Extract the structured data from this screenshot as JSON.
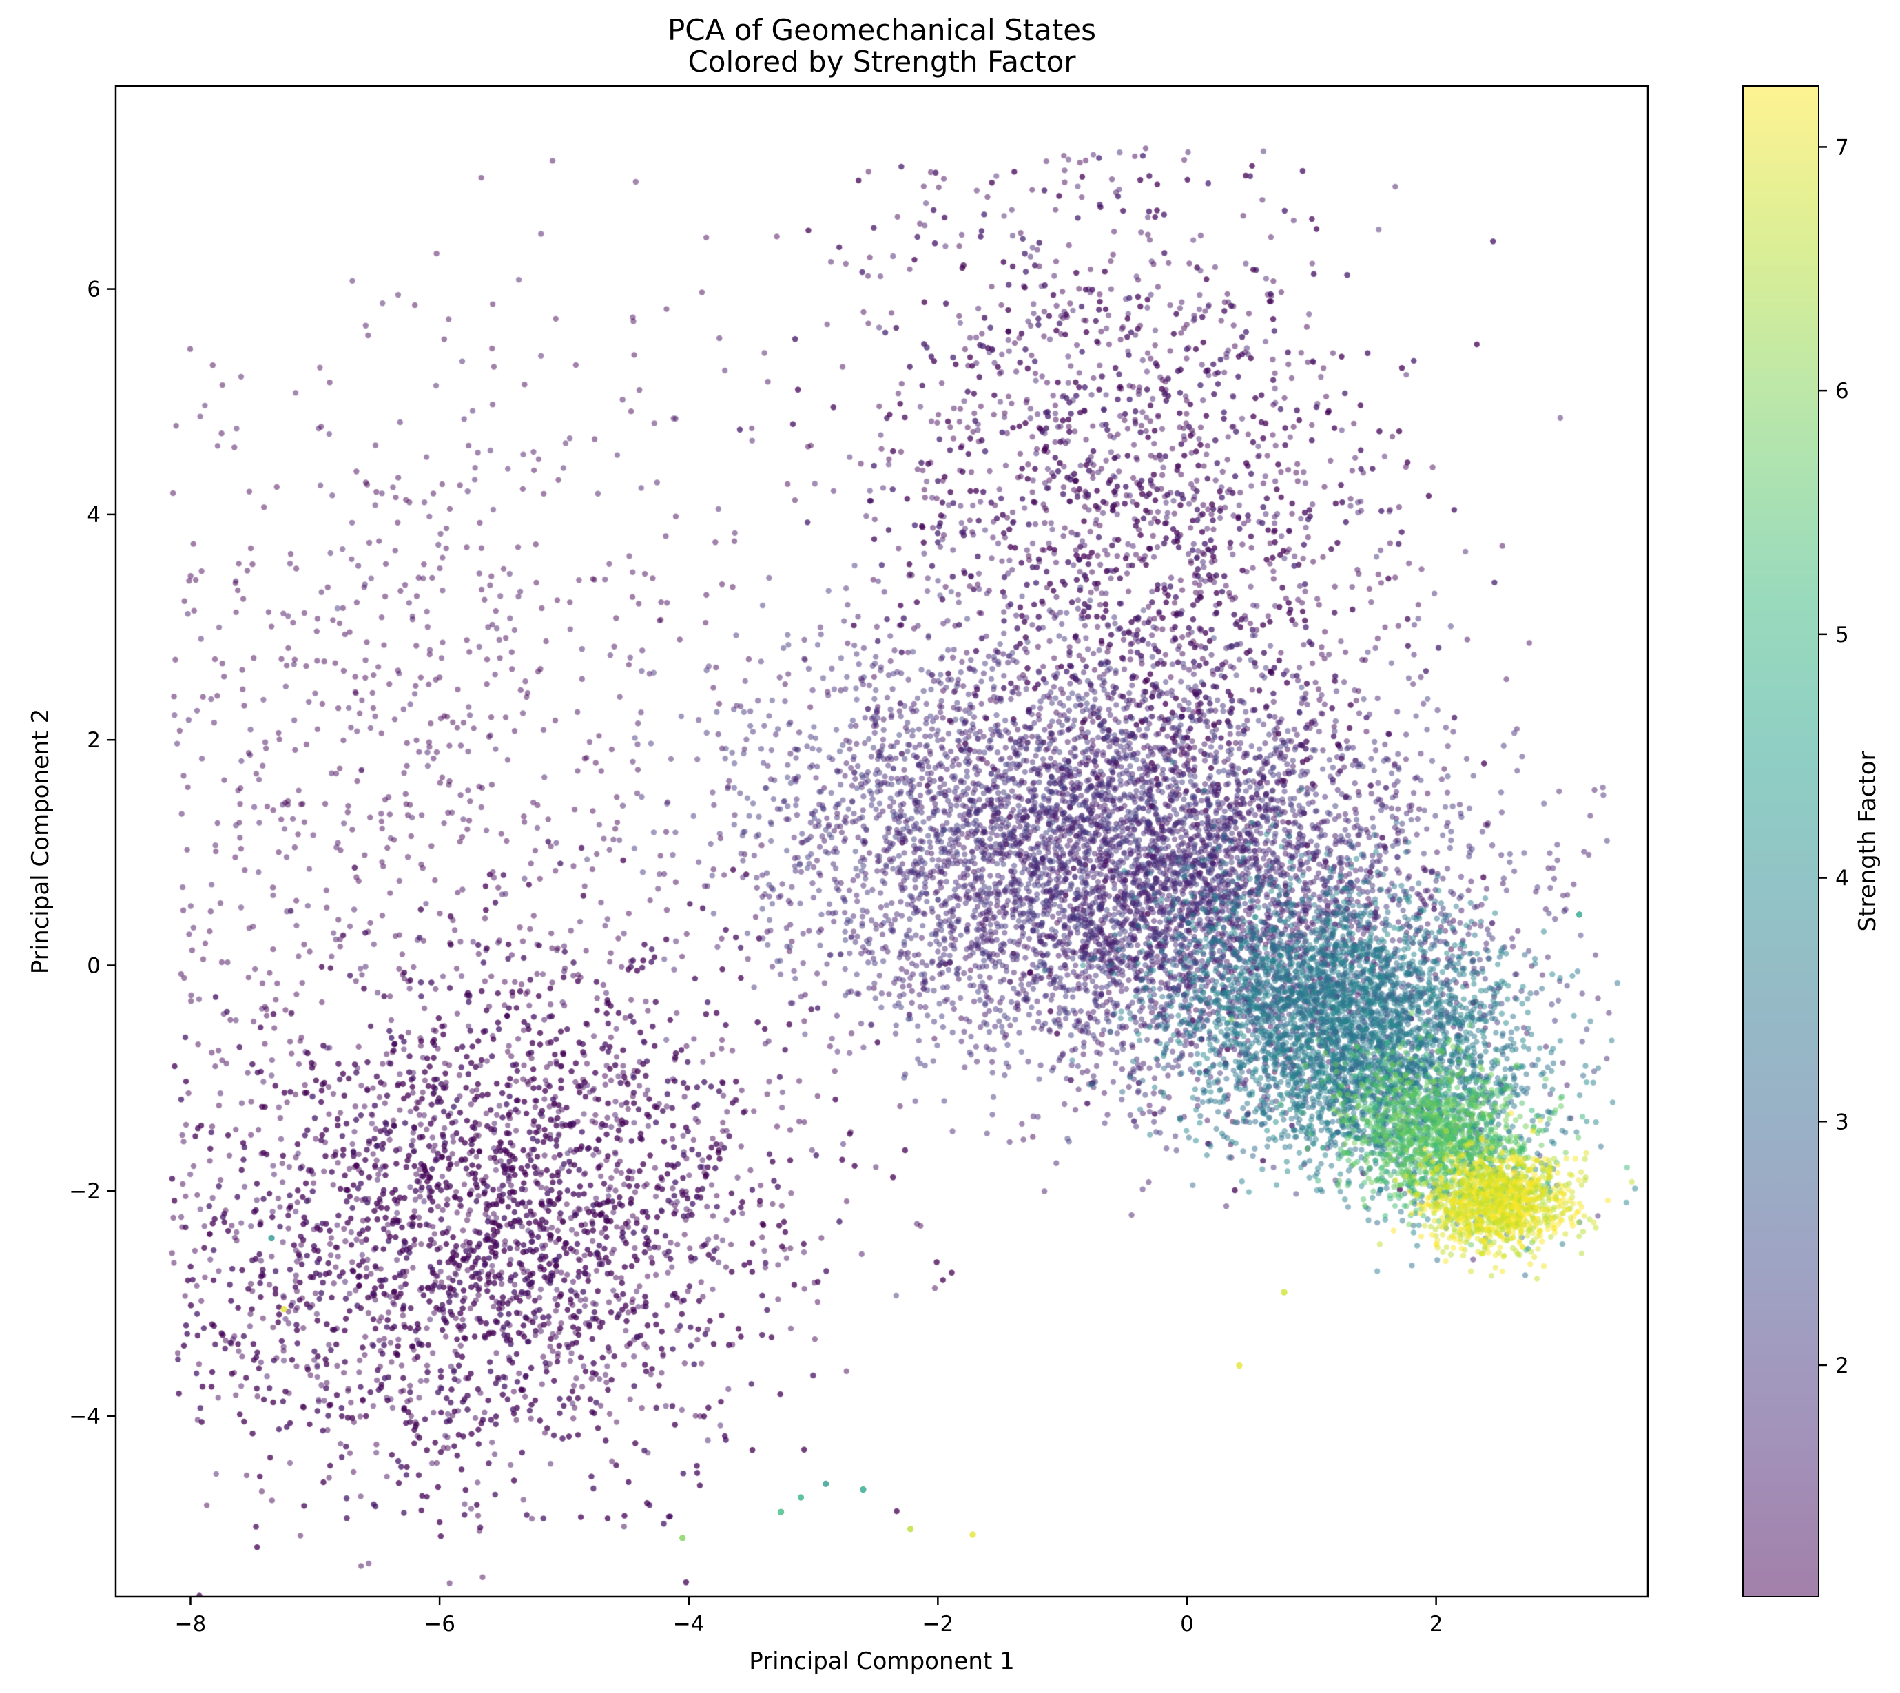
{
  "chart_data": {
    "type": "scatter",
    "title": [
      "PCA of Geomechanical States",
      "Colored by Strength Factor"
    ],
    "xlabel": "Principal Component 1",
    "ylabel": "Principal Component 2",
    "xlim": [
      -8.6,
      3.7
    ],
    "ylim": [
      -5.6,
      7.8
    ],
    "x_ticks": [
      -8,
      -6,
      -4,
      -2,
      0,
      2
    ],
    "x_tick_labels": [
      "−8",
      "−6",
      "−4",
      "−2",
      "0",
      "2"
    ],
    "y_ticks": [
      -4,
      -2,
      0,
      2,
      4,
      6
    ],
    "y_tick_labels": [
      "−4",
      "−2",
      "0",
      "2",
      "4",
      "6"
    ],
    "grid": false,
    "colormap": "viridis",
    "point_alpha": 0.5,
    "colorbar": {
      "label": "Strength Factor",
      "range": [
        1.05,
        7.25
      ],
      "ticks": [
        2,
        3,
        4,
        5,
        6,
        7
      ],
      "tick_labels": [
        "2",
        "3",
        "4",
        "5",
        "6",
        "7"
      ]
    },
    "point_clusters": [
      {
        "name": "lower-left band",
        "center": [
          -5.6,
          -2.3
        ],
        "spread": [
          1.05,
          1.25
        ],
        "rotation_deg": -52,
        "count": 4200,
        "color_value": 1.1
      },
      {
        "name": "left sparse cloud",
        "center": [
          -6.5,
          1.5
        ],
        "spread": [
          1.3,
          2.3
        ],
        "rotation_deg": -20,
        "count": 900,
        "color_value": 1.1
      },
      {
        "name": "upper central mass",
        "center": [
          -0.4,
          3.6
        ],
        "spread": [
          1.0,
          1.9
        ],
        "rotation_deg": 10,
        "count": 3200,
        "color_value": 1.3
      },
      {
        "name": "dense core",
        "center": [
          -0.5,
          0.8
        ],
        "spread": [
          1.4,
          0.85
        ],
        "rotation_deg": -15,
        "count": 6000,
        "color_value": 1.8
      },
      {
        "name": "diagonal teal arm",
        "center": [
          1.3,
          -0.6
        ],
        "spread": [
          0.75,
          0.55
        ],
        "rotation_deg": -35,
        "count": 3800,
        "color_value": 3.6
      },
      {
        "name": "green lobe",
        "center": [
          2.0,
          -1.5
        ],
        "spread": [
          0.4,
          0.3
        ],
        "rotation_deg": -25,
        "count": 1200,
        "color_value": 5.6
      },
      {
        "name": "yellow tip",
        "center": [
          2.5,
          -2.1
        ],
        "spread": [
          0.28,
          0.22
        ],
        "rotation_deg": 0,
        "count": 1100,
        "color_value": 7.0
      }
    ],
    "outlier_points": [
      {
        "x": -3.26,
        "y": -4.85,
        "value": 5.2
      },
      {
        "x": -2.6,
        "y": -4.65,
        "value": 4.6
      },
      {
        "x": -2.22,
        "y": -5.0,
        "value": 6.6
      },
      {
        "x": -1.72,
        "y": -5.05,
        "value": 7.0
      },
      {
        "x": -4.05,
        "y": -5.08,
        "value": 6.0
      },
      {
        "x": 0.42,
        "y": -3.55,
        "value": 7.0
      },
      {
        "x": 0.78,
        "y": -2.9,
        "value": 6.8
      },
      {
        "x": -7.25,
        "y": -3.05,
        "value": 7.0
      },
      {
        "x": -7.35,
        "y": -2.42,
        "value": 4.2
      },
      {
        "x": 3.15,
        "y": 0.45,
        "value": 4.6
      },
      {
        "x": -3.1,
        "y": -4.72,
        "value": 4.9
      },
      {
        "x": -2.9,
        "y": -4.6,
        "value": 4.3
      }
    ]
  }
}
